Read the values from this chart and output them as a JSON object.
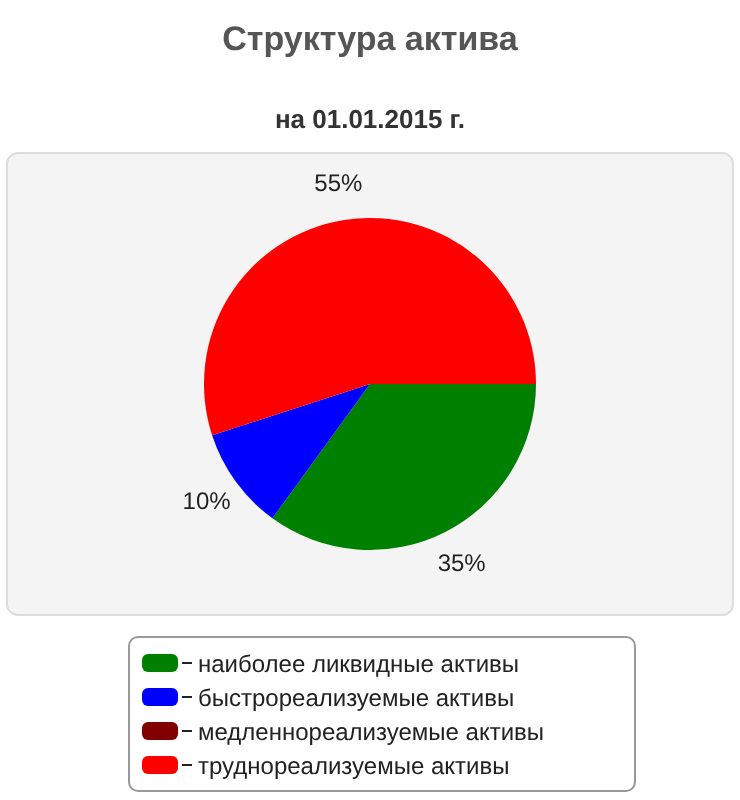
{
  "chart_data": {
    "type": "pie",
    "title": "Структура актива",
    "subtitle": "на 01.01.2015 г.",
    "categories": [
      "наиболее ликвидные активы",
      "быстрореализуемые активы",
      "медленнореализуемые активы",
      "труднореализуемые активы"
    ],
    "values": [
      35,
      10,
      0,
      55
    ],
    "colors": [
      "#008000",
      "#0000ff",
      "#800000",
      "#ff0000"
    ],
    "value_labels": [
      "35%",
      "10%",
      null,
      "55%"
    ],
    "legend": "bottom"
  }
}
